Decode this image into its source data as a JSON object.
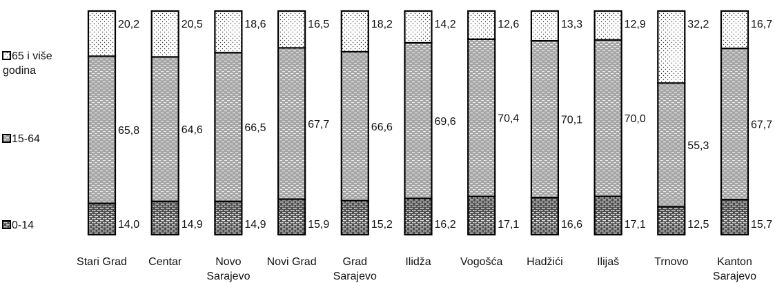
{
  "chart_data": {
    "type": "bar",
    "stacked": true,
    "normalized_percent": true,
    "categories": [
      "Stari Grad",
      "Centar",
      "Novo Sarajevo",
      "Novi Grad",
      "Grad Sarajevo",
      "Ilidža",
      "Vogošća",
      "Hadžići",
      "Ilijaš",
      "Trnovo",
      "Kanton Sarajevo"
    ],
    "category_lines": [
      [
        "Stari Grad"
      ],
      [
        "Centar"
      ],
      [
        "Novo",
        "Sarajevo"
      ],
      [
        "Novi Grad"
      ],
      [
        "Grad",
        "Sarajevo"
      ],
      [
        "Ilidža"
      ],
      [
        "Vogošća"
      ],
      [
        "Hadžići"
      ],
      [
        "Ilijaš"
      ],
      [
        "Trnovo"
      ],
      [
        "Kanton",
        "Sarajevo"
      ]
    ],
    "series": [
      {
        "name": "0-14",
        "values": [
          14.0,
          14.9,
          14.9,
          15.9,
          15.2,
          16.2,
          17.1,
          16.6,
          17.1,
          12.5,
          15.7
        ],
        "labels": [
          "14,0",
          "14,9",
          "14,9",
          "15,9",
          "15,2",
          "16,2",
          "17,1",
          "16,6",
          "17,1",
          "12,5",
          "15,7"
        ],
        "fill": "#555555",
        "pattern": "bricks"
      },
      {
        "name": "15-64",
        "values": [
          65.8,
          64.6,
          66.5,
          67.7,
          66.6,
          69.6,
          70.4,
          70.1,
          70.0,
          55.3,
          67.7
        ],
        "labels": [
          "65,8",
          "64,6",
          "66,5",
          "67,7",
          "66,6",
          "69,6",
          "70,4",
          "70,1",
          "70,0",
          "55,3",
          "67,7"
        ],
        "fill": "#b3b3b3",
        "pattern": "dashes"
      },
      {
        "name": "65 i više godina",
        "values": [
          20.2,
          20.5,
          18.6,
          16.5,
          18.2,
          14.2,
          12.6,
          13.3,
          12.9,
          32.2,
          16.7
        ],
        "labels": [
          "20,2",
          "20,5",
          "18,6",
          "16,5",
          "18,2",
          "14,2",
          "12,6",
          "13,3",
          "12,9",
          "32,2",
          "16,7"
        ],
        "fill": "#ffffff",
        "pattern": "dots"
      }
    ],
    "legend_lines": [
      [
        "65 i više",
        "godina"
      ],
      [
        "15-64"
      ],
      [
        "0-14"
      ]
    ],
    "legend_position": "left",
    "ylim": [
      0,
      100
    ],
    "grid": false
  }
}
